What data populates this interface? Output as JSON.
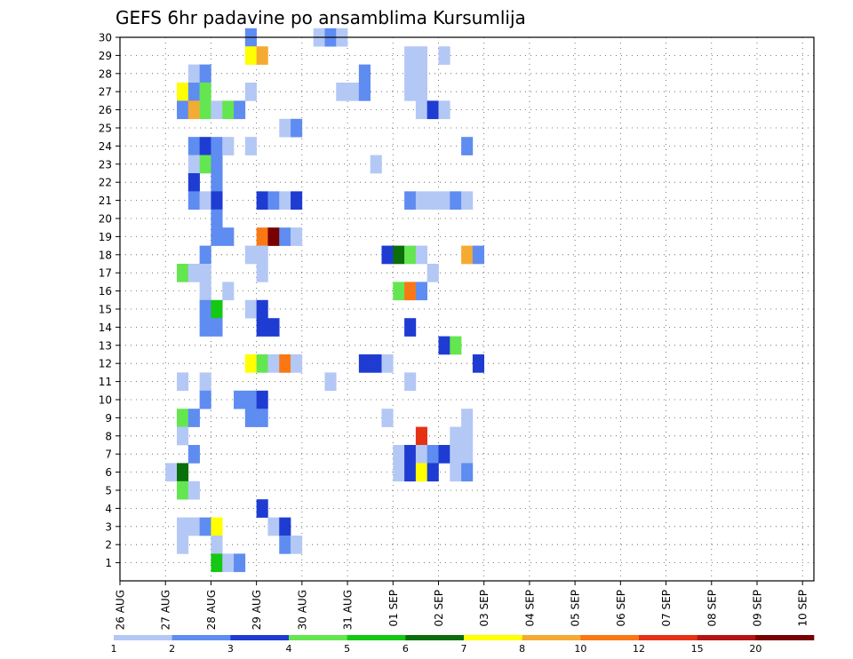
{
  "chart_data": {
    "type": "heatmap",
    "title": "GEFS 6hr padavine po ansamblima Kursumlija",
    "x_labels": [
      "26 AUG",
      "27 AUG",
      "28 AUG",
      "29 AUG",
      "30 AUG",
      "31 AUG",
      "01 SEP",
      "02 SEP",
      "03 SEP",
      "04 SEP",
      "05 SEP",
      "06 SEP",
      "07 SEP",
      "08 SEP",
      "09 SEP",
      "10 SEP"
    ],
    "y_labels": [
      "1",
      "2",
      "3",
      "4",
      "5",
      "6",
      "7",
      "8",
      "9",
      "10",
      "11",
      "12",
      "13",
      "14",
      "15",
      "16",
      "17",
      "18",
      "19",
      "20",
      "21",
      "22",
      "23",
      "24",
      "25",
      "26",
      "27",
      "28",
      "29",
      "30"
    ],
    "x_range": [
      0,
      61
    ],
    "y_range": [
      0,
      30
    ],
    "grid": true,
    "colorbar": {
      "labels": [
        "1",
        "2",
        "3",
        "4",
        "5",
        "6",
        "7",
        "8",
        "10",
        "12",
        "15",
        "20"
      ],
      "colors": [
        "#b4c8f5",
        "#5f8cf0",
        "#1e3cd2",
        "#64e650",
        "#14c814",
        "#0a6e0a",
        "#ffff00",
        "#f5aa32",
        "#fa7814",
        "#e63214",
        "#b41414",
        "#780000"
      ]
    },
    "cells": [
      [
        11,
        30,
        1
      ],
      [
        17,
        30,
        0
      ],
      [
        18,
        30,
        1
      ],
      [
        19,
        30,
        0
      ],
      [
        11,
        29,
        6
      ],
      [
        12,
        29,
        7
      ],
      [
        25,
        29,
        0
      ],
      [
        26,
        29,
        0
      ],
      [
        28,
        29,
        0
      ],
      [
        6,
        28,
        0
      ],
      [
        7,
        28,
        1
      ],
      [
        21,
        28,
        1
      ],
      [
        25,
        28,
        0
      ],
      [
        26,
        28,
        0
      ],
      [
        5,
        27,
        6
      ],
      [
        6,
        27,
        1
      ],
      [
        7,
        27,
        3
      ],
      [
        11,
        27,
        0
      ],
      [
        19,
        27,
        0
      ],
      [
        20,
        27,
        0
      ],
      [
        21,
        27,
        1
      ],
      [
        25,
        27,
        0
      ],
      [
        26,
        27,
        0
      ],
      [
        5,
        26,
        1
      ],
      [
        6,
        26,
        7
      ],
      [
        7,
        26,
        3
      ],
      [
        8,
        26,
        0
      ],
      [
        9,
        26,
        3
      ],
      [
        10,
        26,
        1
      ],
      [
        26,
        26,
        0
      ],
      [
        27,
        26,
        2
      ],
      [
        28,
        26,
        0
      ],
      [
        14,
        25,
        0
      ],
      [
        15,
        25,
        1
      ],
      [
        6,
        24,
        1
      ],
      [
        7,
        24,
        2
      ],
      [
        8,
        24,
        1
      ],
      [
        9,
        24,
        0
      ],
      [
        11,
        24,
        0
      ],
      [
        30,
        24,
        1
      ],
      [
        6,
        23,
        0
      ],
      [
        7,
        23,
        3
      ],
      [
        8,
        23,
        1
      ],
      [
        22,
        23,
        0
      ],
      [
        6,
        22,
        2
      ],
      [
        8,
        22,
        1
      ],
      [
        6,
        21,
        1
      ],
      [
        7,
        21,
        0
      ],
      [
        8,
        21,
        2
      ],
      [
        12,
        21,
        2
      ],
      [
        13,
        21,
        1
      ],
      [
        14,
        21,
        0
      ],
      [
        15,
        21,
        2
      ],
      [
        25,
        21,
        1
      ],
      [
        26,
        21,
        0
      ],
      [
        27,
        21,
        0
      ],
      [
        28,
        21,
        0
      ],
      [
        29,
        21,
        1
      ],
      [
        30,
        21,
        0
      ],
      [
        8,
        20,
        1
      ],
      [
        8,
        19,
        1
      ],
      [
        9,
        19,
        1
      ],
      [
        12,
        19,
        8
      ],
      [
        13,
        19,
        11
      ],
      [
        14,
        19,
        1
      ],
      [
        15,
        19,
        0
      ],
      [
        7,
        18,
        1
      ],
      [
        11,
        18,
        0
      ],
      [
        12,
        18,
        0
      ],
      [
        23,
        18,
        2
      ],
      [
        24,
        18,
        5
      ],
      [
        25,
        18,
        3
      ],
      [
        26,
        18,
        0
      ],
      [
        30,
        18,
        7
      ],
      [
        31,
        18,
        1
      ],
      [
        5,
        17,
        3
      ],
      [
        6,
        17,
        0
      ],
      [
        7,
        17,
        0
      ],
      [
        12,
        17,
        0
      ],
      [
        27,
        17,
        0
      ],
      [
        7,
        16,
        0
      ],
      [
        9,
        16,
        0
      ],
      [
        24,
        16,
        3
      ],
      [
        25,
        16,
        8
      ],
      [
        26,
        16,
        1
      ],
      [
        7,
        15,
        1
      ],
      [
        8,
        15,
        4
      ],
      [
        11,
        15,
        0
      ],
      [
        12,
        15,
        2
      ],
      [
        7,
        14,
        1
      ],
      [
        8,
        14,
        1
      ],
      [
        12,
        14,
        2
      ],
      [
        13,
        14,
        2
      ],
      [
        25,
        14,
        2
      ],
      [
        28,
        13,
        2
      ],
      [
        29,
        13,
        3
      ],
      [
        11,
        12,
        6
      ],
      [
        12,
        12,
        3
      ],
      [
        13,
        12,
        0
      ],
      [
        14,
        12,
        8
      ],
      [
        15,
        12,
        0
      ],
      [
        21,
        12,
        2
      ],
      [
        22,
        12,
        2
      ],
      [
        23,
        12,
        0
      ],
      [
        31,
        12,
        2
      ],
      [
        5,
        11,
        0
      ],
      [
        7,
        11,
        0
      ],
      [
        18,
        11,
        0
      ],
      [
        25,
        11,
        0
      ],
      [
        7,
        10,
        1
      ],
      [
        10,
        10,
        1
      ],
      [
        11,
        10,
        1
      ],
      [
        12,
        10,
        2
      ],
      [
        5,
        9,
        3
      ],
      [
        6,
        9,
        1
      ],
      [
        11,
        9,
        1
      ],
      [
        12,
        9,
        1
      ],
      [
        23,
        9,
        0
      ],
      [
        30,
        9,
        0
      ],
      [
        5,
        8,
        0
      ],
      [
        26,
        8,
        9
      ],
      [
        29,
        8,
        0
      ],
      [
        30,
        8,
        0
      ],
      [
        6,
        7,
        1
      ],
      [
        24,
        7,
        0
      ],
      [
        25,
        7,
        2
      ],
      [
        26,
        7,
        0
      ],
      [
        27,
        7,
        1
      ],
      [
        28,
        7,
        2
      ],
      [
        29,
        7,
        0
      ],
      [
        30,
        7,
        0
      ],
      [
        4,
        6,
        0
      ],
      [
        5,
        6,
        5
      ],
      [
        24,
        6,
        0
      ],
      [
        25,
        6,
        2
      ],
      [
        26,
        6,
        6
      ],
      [
        27,
        6,
        2
      ],
      [
        29,
        6,
        0
      ],
      [
        30,
        6,
        1
      ],
      [
        5,
        5,
        3
      ],
      [
        6,
        5,
        0
      ],
      [
        12,
        4,
        2
      ],
      [
        5,
        3,
        0
      ],
      [
        6,
        3,
        0
      ],
      [
        7,
        3,
        1
      ],
      [
        8,
        3,
        6
      ],
      [
        13,
        3,
        0
      ],
      [
        14,
        3,
        2
      ],
      [
        5,
        2,
        0
      ],
      [
        8,
        2,
        0
      ],
      [
        14,
        2,
        1
      ],
      [
        15,
        2,
        0
      ],
      [
        8,
        1,
        4
      ],
      [
        9,
        1,
        0
      ],
      [
        10,
        1,
        1
      ]
    ]
  }
}
